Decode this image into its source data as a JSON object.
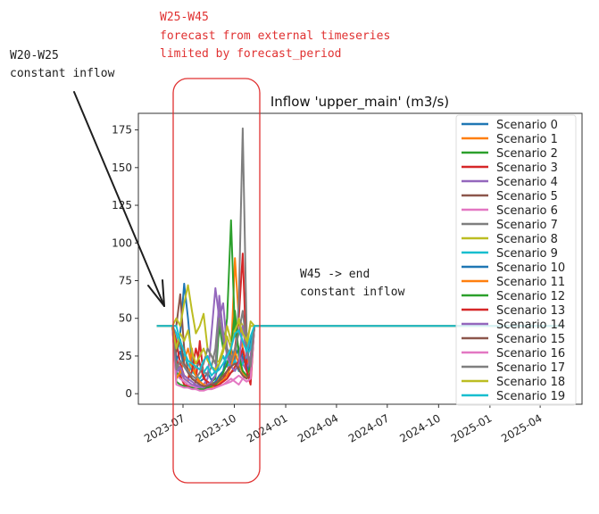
{
  "chart_data": {
    "type": "line",
    "title": "Inflow 'upper_main' (m3/s)",
    "xlabel": "",
    "ylabel": "",
    "ylim": [
      -7,
      186
    ],
    "xlim": [
      "2023-04-12",
      "2025-06-15"
    ],
    "yticks": [
      0,
      25,
      50,
      75,
      100,
      125,
      150,
      175
    ],
    "xticks": [
      "2023-07",
      "2023-10",
      "2024-01",
      "2024-04",
      "2024-07",
      "2024-10",
      "2025-01",
      "2025-04"
    ],
    "grid": false,
    "legend_placement": "right",
    "x": [
      "2023-05-15",
      "2023-06-12",
      "2023-06-19",
      "2023-06-26",
      "2023-07-03",
      "2023-07-10",
      "2023-07-17",
      "2023-07-24",
      "2023-07-31",
      "2023-08-07",
      "2023-08-14",
      "2023-08-21",
      "2023-08-28",
      "2023-09-04",
      "2023-09-11",
      "2023-09-18",
      "2023-09-25",
      "2023-10-02",
      "2023-10-09",
      "2023-10-16",
      "2023-10-23",
      "2023-10-30",
      "2023-11-06",
      "2025-05-12"
    ],
    "series": [
      {
        "name": "Scenario 0",
        "color": "#1f77b4",
        "values": [
          45,
          45,
          30,
          40,
          73,
          50,
          20,
          12,
          8,
          10,
          14,
          9,
          12,
          20,
          25,
          18,
          30,
          22,
          15,
          28,
          20,
          35,
          45,
          45
        ]
      },
      {
        "name": "Scenario 1",
        "color": "#ff7f0e",
        "values": [
          45,
          45,
          20,
          15,
          10,
          8,
          30,
          12,
          6,
          5,
          4,
          8,
          6,
          10,
          15,
          20,
          25,
          90,
          50,
          30,
          20,
          25,
          45,
          45
        ]
      },
      {
        "name": "Scenario 2",
        "color": "#2ca02c",
        "values": [
          45,
          45,
          15,
          10,
          8,
          6,
          5,
          4,
          4,
          5,
          6,
          8,
          10,
          45,
          30,
          50,
          115,
          40,
          30,
          20,
          15,
          22,
          45,
          45
        ]
      },
      {
        "name": "Scenario 3",
        "color": "#d62728",
        "values": [
          45,
          45,
          25,
          12,
          6,
          5,
          4,
          8,
          35,
          12,
          5,
          3,
          4,
          6,
          10,
          15,
          20,
          30,
          50,
          93,
          20,
          8,
          45,
          45
        ]
      },
      {
        "name": "Scenario 4",
        "color": "#9467bd",
        "values": [
          45,
          45,
          18,
          14,
          10,
          8,
          6,
          5,
          4,
          6,
          10,
          40,
          70,
          50,
          60,
          30,
          20,
          25,
          30,
          20,
          15,
          25,
          45,
          45
        ]
      },
      {
        "name": "Scenario 5",
        "color": "#8c564b",
        "values": [
          45,
          45,
          45,
          66,
          30,
          15,
          10,
          8,
          6,
          5,
          4,
          5,
          6,
          8,
          10,
          12,
          14,
          16,
          18,
          15,
          12,
          20,
          45,
          45
        ]
      },
      {
        "name": "Scenario 6",
        "color": "#e377c2",
        "values": [
          45,
          45,
          12,
          10,
          8,
          6,
          5,
          4,
          3,
          3,
          3,
          4,
          4,
          5,
          6,
          8,
          10,
          8,
          6,
          10,
          12,
          15,
          45,
          45
        ]
      },
      {
        "name": "Scenario 7",
        "color": "#7f7f7f",
        "values": [
          45,
          45,
          20,
          15,
          12,
          10,
          14,
          18,
          20,
          15,
          12,
          18,
          30,
          60,
          40,
          30,
          25,
          20,
          60,
          176,
          40,
          30,
          45,
          45
        ]
      },
      {
        "name": "Scenario 8",
        "color": "#bcbd22",
        "values": [
          45,
          45,
          50,
          45,
          60,
          72,
          55,
          40,
          45,
          53,
          30,
          25,
          20,
          22,
          30,
          45,
          35,
          40,
          50,
          45,
          30,
          48,
          45,
          45
        ]
      },
      {
        "name": "Scenario 9",
        "color": "#17becf",
        "values": [
          45,
          45,
          40,
          30,
          25,
          20,
          15,
          12,
          10,
          14,
          18,
          12,
          15,
          20,
          25,
          20,
          18,
          22,
          15,
          20,
          25,
          30,
          45,
          45
        ]
      },
      {
        "name": "Scenario 10",
        "color": "#1f77b4",
        "values": [
          45,
          45,
          22,
          28,
          18,
          14,
          10,
          8,
          6,
          5,
          5,
          6,
          8,
          12,
          15,
          28,
          20,
          25,
          30,
          24,
          18,
          14,
          45,
          45
        ]
      },
      {
        "name": "Scenario 11",
        "color": "#ff7f0e",
        "values": [
          45,
          45,
          10,
          14,
          22,
          30,
          18,
          12,
          8,
          6,
          5,
          4,
          5,
          7,
          9,
          12,
          18,
          28,
          20,
          14,
          10,
          16,
          45,
          45
        ]
      },
      {
        "name": "Scenario 12",
        "color": "#2ca02c",
        "values": [
          45,
          45,
          8,
          6,
          5,
          4,
          4,
          3,
          3,
          3,
          4,
          5,
          6,
          9,
          14,
          20,
          30,
          55,
          25,
          15,
          12,
          18,
          45,
          45
        ]
      },
      {
        "name": "Scenario 13",
        "color": "#d62728",
        "values": [
          45,
          45,
          35,
          20,
          12,
          10,
          15,
          30,
          20,
          10,
          8,
          6,
          5,
          6,
          8,
          10,
          14,
          18,
          22,
          30,
          15,
          6,
          45,
          45
        ]
      },
      {
        "name": "Scenario 14",
        "color": "#9467bd",
        "values": [
          45,
          45,
          14,
          18,
          12,
          10,
          8,
          6,
          5,
          4,
          6,
          8,
          12,
          65,
          40,
          25,
          18,
          15,
          20,
          45,
          25,
          20,
          45,
          45
        ]
      },
      {
        "name": "Scenario 15",
        "color": "#8c564b",
        "values": [
          45,
          45,
          28,
          36,
          20,
          14,
          10,
          8,
          6,
          5,
          5,
          6,
          7,
          9,
          12,
          15,
          18,
          20,
          16,
          12,
          10,
          14,
          45,
          45
        ]
      },
      {
        "name": "Scenario 16",
        "color": "#e377c2",
        "values": [
          45,
          45,
          6,
          5,
          4,
          4,
          3,
          3,
          2,
          2,
          3,
          3,
          4,
          5,
          6,
          7,
          8,
          10,
          12,
          10,
          8,
          10,
          45,
          45
        ]
      },
      {
        "name": "Scenario 17",
        "color": "#7f7f7f",
        "values": [
          45,
          45,
          16,
          22,
          18,
          15,
          12,
          10,
          14,
          20,
          30,
          25,
          20,
          50,
          35,
          28,
          22,
          30,
          40,
          55,
          30,
          18,
          45,
          45
        ]
      },
      {
        "name": "Scenario 18",
        "color": "#bcbd22",
        "values": [
          45,
          45,
          30,
          40,
          35,
          42,
          28,
          20,
          25,
          30,
          22,
          18,
          16,
          20,
          28,
          38,
          30,
          42,
          48,
          40,
          35,
          45,
          45,
          45
        ]
      },
      {
        "name": "Scenario 19",
        "color": "#17becf",
        "values": [
          45,
          45,
          45,
          35,
          28,
          22,
          20,
          18,
          16,
          22,
          25,
          18,
          14,
          16,
          20,
          25,
          30,
          40,
          42,
          35,
          28,
          38,
          45,
          45
        ]
      }
    ]
  },
  "annotations": {
    "left_note": [
      "W20-W25",
      "constant inflow"
    ],
    "forecast_note": [
      "W25-W45",
      "forecast from external timeseries",
      "limited by forecast_period"
    ],
    "right_note": [
      "W45 -> end",
      "constant inflow"
    ],
    "forecast_color": "#e03131",
    "note_color": "#1e1e1e"
  }
}
